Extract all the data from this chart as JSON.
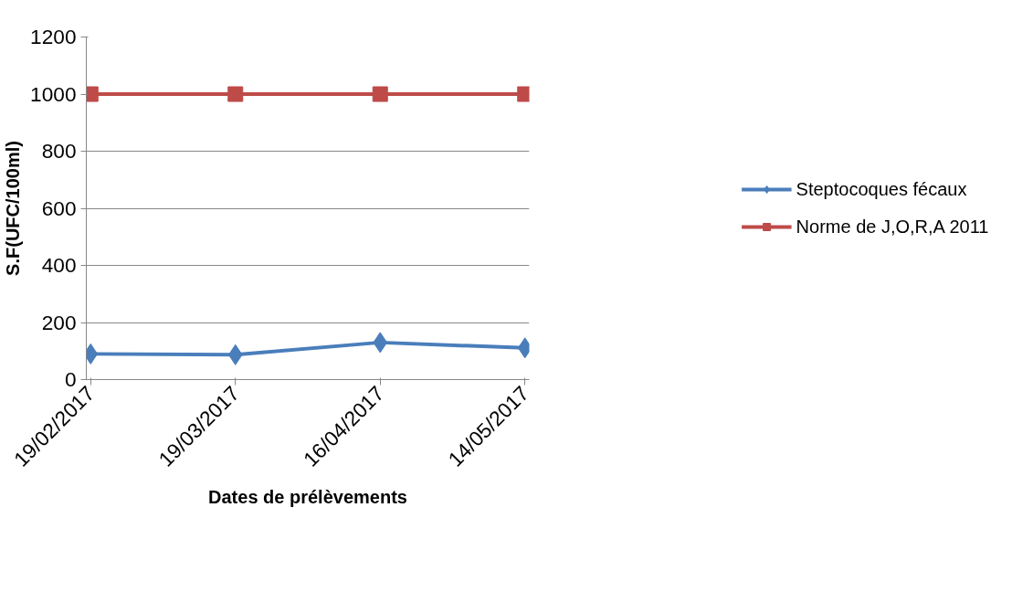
{
  "chart_data": {
    "type": "line",
    "xlabel": "Dates de prélèvements",
    "ylabel": "S.F(UFC/100ml)",
    "categories": [
      "19/02/2017",
      "19/03/2017",
      "16/04/2017",
      "14/05/2017"
    ],
    "series": [
      {
        "name": "Steptocoques fécaux",
        "color": "#4a7ebb",
        "values": [
          90,
          87,
          130,
          111
        ],
        "marker": "diamond"
      },
      {
        "name": "Norme de J,O,R,A 2011",
        "color": "#be4b48",
        "values": [
          1000,
          1000,
          1000,
          1000
        ],
        "marker": "square"
      }
    ],
    "ylim": [
      0,
      1200
    ],
    "yticks": [
      0,
      200,
      400,
      600,
      800,
      1000,
      1200
    ],
    "grid": "y",
    "legend": "right",
    "line_style": "solid"
  }
}
